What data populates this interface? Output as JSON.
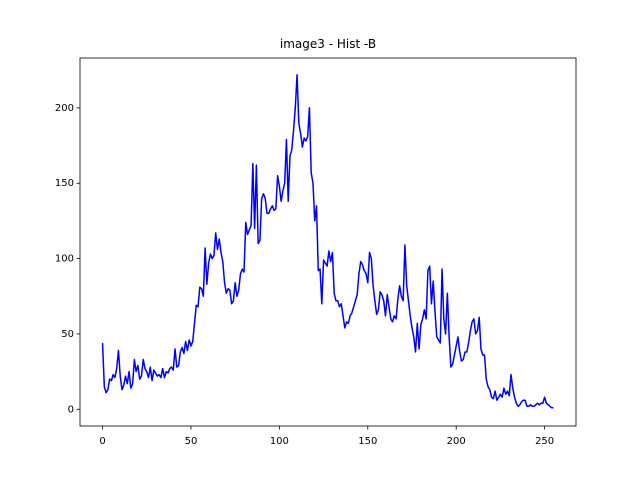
{
  "chart_data": {
    "type": "line",
    "title": "image3 - Hist -B",
    "color": "#0000ff",
    "x": [
      0,
      1,
      2,
      3,
      4,
      5,
      6,
      7,
      8,
      9,
      10,
      11,
      12,
      13,
      14,
      15,
      16,
      17,
      18,
      19,
      20,
      21,
      22,
      23,
      24,
      25,
      26,
      27,
      28,
      29,
      30,
      31,
      32,
      33,
      34,
      35,
      36,
      37,
      38,
      39,
      40,
      41,
      42,
      43,
      44,
      45,
      46,
      47,
      48,
      49,
      50,
      51,
      52,
      53,
      54,
      55,
      56,
      57,
      58,
      59,
      60,
      61,
      62,
      63,
      64,
      65,
      66,
      67,
      68,
      69,
      70,
      71,
      72,
      73,
      74,
      75,
      76,
      77,
      78,
      79,
      80,
      81,
      82,
      83,
      84,
      85,
      86,
      87,
      88,
      89,
      90,
      91,
      92,
      93,
      94,
      95,
      96,
      97,
      98,
      99,
      100,
      101,
      102,
      103,
      104,
      105,
      106,
      107,
      108,
      109,
      110,
      111,
      112,
      113,
      114,
      115,
      116,
      117,
      118,
      119,
      120,
      121,
      122,
      123,
      124,
      125,
      126,
      127,
      128,
      129,
      130,
      131,
      132,
      133,
      134,
      135,
      136,
      137,
      138,
      139,
      140,
      141,
      142,
      143,
      144,
      145,
      146,
      147,
      148,
      149,
      150,
      151,
      152,
      153,
      154,
      155,
      156,
      157,
      158,
      159,
      160,
      161,
      162,
      163,
      164,
      165,
      166,
      167,
      168,
      169,
      170,
      171,
      172,
      173,
      174,
      175,
      176,
      177,
      178,
      179,
      180,
      181,
      182,
      183,
      184,
      185,
      186,
      187,
      188,
      189,
      190,
      191,
      192,
      193,
      194,
      195,
      196,
      197,
      198,
      199,
      200,
      201,
      202,
      203,
      204,
      205,
      206,
      207,
      208,
      209,
      210,
      211,
      212,
      213,
      214,
      215,
      216,
      217,
      218,
      219,
      220,
      221,
      222,
      223,
      224,
      225,
      226,
      227,
      228,
      229,
      230,
      231,
      232,
      233,
      234,
      235,
      236,
      237,
      238,
      239,
      240,
      241,
      242,
      243,
      244,
      245,
      246,
      247,
      248,
      249,
      250,
      251,
      252,
      253,
      254,
      255
    ],
    "values": [
      44,
      15,
      11,
      13,
      20,
      19,
      23,
      21,
      27,
      39,
      22,
      13,
      16,
      22,
      17,
      25,
      14,
      17,
      33,
      25,
      29,
      20,
      22,
      33,
      27,
      25,
      21,
      28,
      19,
      26,
      24,
      22,
      23,
      21,
      27,
      21,
      25,
      24,
      27,
      28,
      26,
      40,
      28,
      29,
      38,
      41,
      37,
      45,
      39,
      46,
      42,
      45,
      57,
      69,
      68,
      81,
      80,
      75,
      107,
      83,
      97,
      103,
      100,
      102,
      117,
      106,
      113,
      104,
      98,
      84,
      77,
      80,
      79,
      70,
      72,
      84,
      75,
      79,
      90,
      93,
      91,
      124,
      116,
      119,
      122,
      163,
      120,
      162,
      110,
      112,
      140,
      143,
      140,
      130,
      130,
      133,
      135,
      132,
      133,
      155,
      148,
      138,
      145,
      150,
      179,
      138,
      168,
      172,
      185,
      200,
      222,
      190,
      183,
      174,
      180,
      178,
      181,
      200,
      157,
      150,
      125,
      135,
      92,
      93,
      70,
      99,
      97,
      95,
      105,
      98,
      104,
      77,
      72,
      72,
      68,
      70,
      62,
      54,
      58,
      57,
      62,
      64,
      68,
      72,
      76,
      90,
      98,
      96,
      92,
      90,
      84,
      104,
      100,
      82,
      72,
      63,
      66,
      78,
      76,
      72,
      62,
      76,
      68,
      60,
      58,
      62,
      60,
      73,
      82,
      75,
      72,
      109,
      82,
      72,
      62,
      54,
      48,
      38,
      57,
      40,
      56,
      60,
      66,
      60,
      92,
      95,
      70,
      85,
      65,
      48,
      46,
      44,
      93,
      60,
      50,
      77,
      48,
      28,
      30,
      36,
      42,
      48,
      38,
      32,
      33,
      38,
      38,
      44,
      52,
      58,
      60,
      50,
      52,
      61,
      40,
      36,
      36,
      20,
      15,
      13,
      8,
      7,
      12,
      6,
      8,
      10,
      8,
      14,
      10,
      12,
      9,
      23,
      14,
      8,
      4,
      2,
      3,
      5,
      6,
      6,
      2,
      2,
      3,
      2,
      2,
      3,
      4,
      3,
      4,
      4,
      8,
      4,
      3,
      2,
      1,
      1
    ],
    "xlim": [
      -12.75,
      267.75
    ],
    "ylim": [
      -11.1,
      233.1
    ],
    "xticks": [
      0,
      50,
      100,
      150,
      200,
      250
    ],
    "yticks": [
      0,
      50,
      100,
      150,
      200
    ]
  }
}
